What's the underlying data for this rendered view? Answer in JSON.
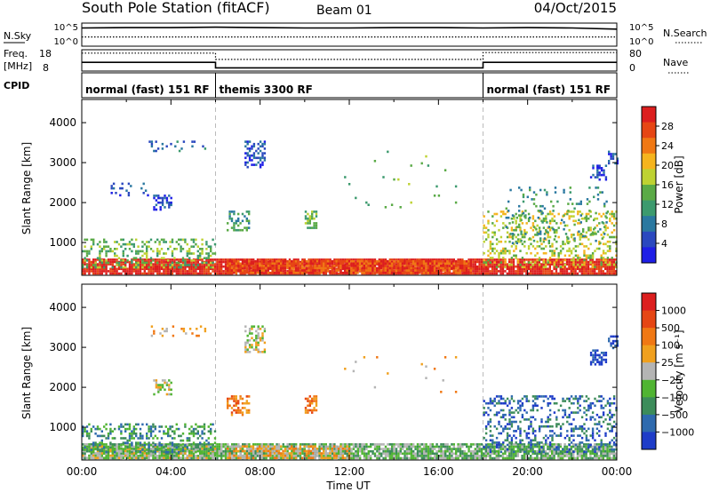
{
  "header": {
    "station": "South Pole Station (fitACF)",
    "beam": "Beam 01",
    "date": "04/Oct/2015"
  },
  "chart_data": [
    {
      "type": "line",
      "name": "noise-panel",
      "left_label": "N.Sky",
      "right_label": "N.Search",
      "left_ticks": [
        "10^5",
        "10^0"
      ],
      "right_ticks": [
        "10^5",
        "10^0"
      ],
      "ylim": [
        0,
        5
      ],
      "series": [
        {
          "style": "solid",
          "x": [
            0,
            2,
            4,
            6,
            8,
            10,
            12,
            14,
            16,
            18,
            20,
            22,
            24
          ],
          "y": [
            4.2,
            4.3,
            4.3,
            4.4,
            4.3,
            4.2,
            4.2,
            4.3,
            4.3,
            4.2,
            4.3,
            4.2,
            3.9
          ]
        },
        {
          "style": "dotted",
          "x": [
            0,
            6,
            12,
            18,
            24
          ],
          "y": [
            1.9,
            1.9,
            1.9,
            1.9,
            1.9
          ]
        }
      ]
    },
    {
      "type": "line",
      "name": "freq-panel",
      "left_label": "Freq.",
      "left_unit": "[MHz]",
      "right_label": "Nave",
      "left_ticks": [
        "18",
        "8"
      ],
      "right_ticks": [
        "80",
        "0"
      ],
      "freq_ylim": [
        8,
        18
      ],
      "nave_ylim": [
        0,
        80
      ],
      "freq_series": {
        "x": [
          0,
          6,
          6,
          18,
          18,
          24
        ],
        "y": [
          12.0,
          12.0,
          9.2,
          9.2,
          12.0,
          12.0
        ]
      },
      "nave_series": {
        "x": [
          0,
          6,
          6,
          18,
          18,
          24
        ],
        "y": [
          70,
          70,
          44,
          44,
          72,
          72
        ]
      }
    },
    {
      "type": "table",
      "name": "cpid-strip",
      "label": "CPID",
      "segments": [
        {
          "start": 0,
          "end": 6,
          "text": "normal (fast) 151 RF"
        },
        {
          "start": 6,
          "end": 18,
          "text": "themis 3300 RF"
        },
        {
          "start": 18,
          "end": 24,
          "text": "normal (fast) 151 RF"
        }
      ]
    },
    {
      "type": "heatmap",
      "name": "power",
      "ylabel": "Slant Range [km]",
      "yticks": [
        1000,
        2000,
        3000,
        4000
      ],
      "ylim": [
        180,
        4580
      ],
      "colorbar": {
        "label": "Power [dB]",
        "ticks": [
          "28",
          "24",
          "20",
          "16",
          "12",
          "8",
          "4"
        ],
        "colors": [
          "#1e1ee6",
          "#2a48bf",
          "#2a78a0",
          "#3c9a6e",
          "#5aaa46",
          "#bed232",
          "#f5b41e",
          "#f07814",
          "#e64614",
          "#dc1e1e"
        ]
      },
      "features": [
        {
          "t0": 0,
          "t1": 24,
          "r0": 200,
          "r1": 600,
          "level": 9,
          "density": 0.9
        },
        {
          "t0": 6.5,
          "t1": 17.5,
          "r0": 250,
          "r1": 560,
          "level": 8,
          "density": 0.9
        },
        {
          "t0": 0,
          "t1": 6,
          "r0": 400,
          "r1": 1100,
          "level": 4,
          "density": 0.35
        },
        {
          "t0": 18,
          "t1": 24,
          "r0": 380,
          "r1": 1800,
          "level": 5,
          "density": 0.3
        },
        {
          "t0": 19,
          "t1": 23.5,
          "r0": 1000,
          "r1": 2400,
          "level": 3,
          "density": 0.12
        },
        {
          "t0": 3.2,
          "t1": 4.0,
          "r0": 1800,
          "r1": 2200,
          "level": 1,
          "density": 0.55
        },
        {
          "t0": 1.2,
          "t1": 3.0,
          "r0": 2200,
          "r1": 2500,
          "level": 1,
          "density": 0.18
        },
        {
          "t0": 3.0,
          "t1": 5.5,
          "r0": 3300,
          "r1": 3550,
          "level": 2,
          "density": 0.15
        },
        {
          "t0": 6.5,
          "t1": 7.5,
          "r0": 1300,
          "r1": 1800,
          "level": 3,
          "density": 0.45
        },
        {
          "t0": 7.3,
          "t1": 8.2,
          "r0": 2900,
          "r1": 3550,
          "level": 1,
          "density": 0.55
        },
        {
          "t0": 10.0,
          "t1": 10.5,
          "r0": 1350,
          "r1": 1800,
          "level": 4,
          "density": 0.6
        },
        {
          "t0": 22.8,
          "t1": 23.5,
          "r0": 2600,
          "r1": 2950,
          "level": 1,
          "density": 0.5
        },
        {
          "t0": 23.6,
          "t1": 24,
          "r0": 3000,
          "r1": 3300,
          "level": 1,
          "density": 0.5
        },
        {
          "t0": 11,
          "t1": 17,
          "r0": 1800,
          "r1": 3300,
          "level": 4,
          "density": 0.015
        }
      ]
    },
    {
      "type": "heatmap",
      "name": "velocity",
      "xlabel": "Time UT",
      "ylabel": "Slant Range [km]",
      "xticks": [
        "00:00",
        "04:00",
        "08:00",
        "12:00",
        "16:00",
        "20:00",
        "00:00"
      ],
      "xlim": [
        0,
        24
      ],
      "yticks": [
        1000,
        2000,
        3000,
        4000
      ],
      "ylim": [
        180,
        4580
      ],
      "colorbar": {
        "label": "Velocity [m s⁻¹]",
        "ticks": [
          "1000",
          "500",
          "100",
          "25",
          "−25",
          "−100",
          "−500",
          "−1000"
        ],
        "colors": [
          "#1e3cc8",
          "#2e6aae",
          "#3c8c5a",
          "#50b432",
          "#b4b4b4",
          "#f0a01e",
          "#f07814",
          "#e64614",
          "#dc1e1e"
        ]
      },
      "features": [
        {
          "t0": 0,
          "t1": 24,
          "r0": 200,
          "r1": 600,
          "level": 3,
          "density": 0.85
        },
        {
          "t0": 0,
          "t1": 6,
          "r0": 250,
          "r1": 550,
          "level": 4,
          "density": 0.5
        },
        {
          "t0": 6.5,
          "t1": 12,
          "r0": 250,
          "r1": 550,
          "level": 5,
          "density": 0.6
        },
        {
          "t0": 0,
          "t1": 6,
          "r0": 400,
          "r1": 1100,
          "level": 2,
          "density": 0.35
        },
        {
          "t0": 18,
          "t1": 24,
          "r0": 380,
          "r1": 1800,
          "level": 1,
          "density": 0.3
        },
        {
          "t0": 3.2,
          "t1": 4.0,
          "r0": 1800,
          "r1": 2200,
          "level": 4,
          "density": 0.55
        },
        {
          "t0": 3.0,
          "t1": 5.5,
          "r0": 3300,
          "r1": 3550,
          "level": 5,
          "density": 0.15
        },
        {
          "t0": 6.5,
          "t1": 7.5,
          "r0": 1300,
          "r1": 1800,
          "level": 6,
          "density": 0.5
        },
        {
          "t0": 7.3,
          "t1": 8.2,
          "r0": 2900,
          "r1": 3550,
          "level": 4,
          "density": 0.55
        },
        {
          "t0": 10.0,
          "t1": 10.5,
          "r0": 1350,
          "r1": 1800,
          "level": 6,
          "density": 0.6
        },
        {
          "t0": 22.8,
          "t1": 23.5,
          "r0": 2600,
          "r1": 2950,
          "level": 0,
          "density": 0.5
        },
        {
          "t0": 23.6,
          "t1": 24,
          "r0": 3000,
          "r1": 3300,
          "level": 0,
          "density": 0.5
        },
        {
          "t0": 11,
          "t1": 17,
          "r0": 1800,
          "r1": 3300,
          "level": 5,
          "density": 0.015
        }
      ]
    }
  ]
}
